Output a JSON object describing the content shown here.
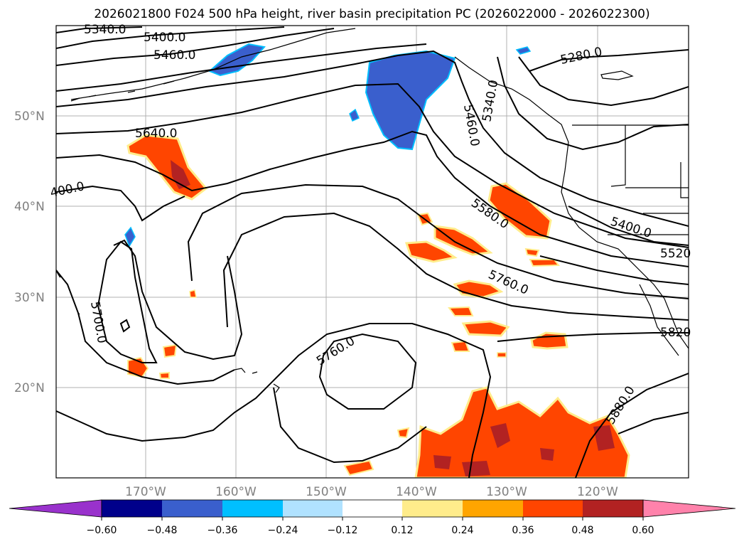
{
  "title": "2026021800 F024 500 hPa height, river basin precipitation PC (2026022000 - 2026022300)",
  "lat_labels": [
    "50°N",
    "40°N",
    "30°N",
    "20°N"
  ],
  "lon_labels": [
    "170°W",
    "160°W",
    "150°W",
    "140°W",
    "130°W",
    "120°W"
  ],
  "contour_labels": [
    "5340.0",
    "5400.0",
    "5460.0",
    "5640.0",
    "400.0",
    "5460.0",
    "5340.0",
    "5280.0",
    "5580.0",
    "5400.0",
    "5520",
    "5760.0",
    "5820",
    "5700.0",
    "5760.0",
    "5880.0"
  ],
  "colorbar": {
    "ticks": [
      "−0.60",
      "−0.48",
      "−0.36",
      "−0.24",
      "−0.12",
      "0.12",
      "0.24",
      "0.36",
      "0.48",
      "0.60"
    ],
    "colors": [
      "#9932cc",
      "#00008b",
      "#3a5fcd",
      "#00bfff",
      "#b0e2ff",
      "#ffffff",
      "#ffec8b",
      "#ffa500",
      "#ff4500",
      "#b22222",
      "#ff82ab"
    ]
  }
}
